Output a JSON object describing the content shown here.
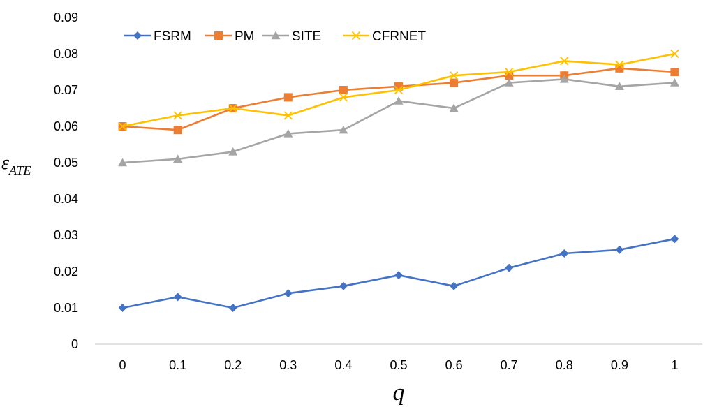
{
  "chart_data": {
    "type": "line",
    "title": "",
    "xlabel": "q",
    "ylabel": {
      "main": "ε",
      "sub": "ATE"
    },
    "x": [
      "0",
      "0.1",
      "0.2",
      "0.3",
      "0.4",
      "0.5",
      "0.6",
      "0.7",
      "0.8",
      "0.9",
      "1"
    ],
    "ylim": [
      0,
      0.09
    ],
    "yticks": [
      "0",
      "0.01",
      "0.02",
      "0.03",
      "0.04",
      "0.05",
      "0.06",
      "0.07",
      "0.08",
      "0.09"
    ],
    "grid": false,
    "legend_position": "top-left",
    "series": [
      {
        "name": "FSRM",
        "color": "#4472C4",
        "marker": "diamond",
        "values": [
          0.01,
          0.013,
          0.01,
          0.014,
          0.016,
          0.019,
          0.016,
          0.021,
          0.025,
          0.026,
          0.029
        ]
      },
      {
        "name": "PM",
        "color": "#ED7D31",
        "marker": "square",
        "values": [
          0.06,
          0.059,
          0.065,
          0.068,
          0.07,
          0.071,
          0.072,
          0.074,
          0.074,
          0.076,
          0.075
        ]
      },
      {
        "name": "SITE",
        "color": "#A5A5A5",
        "marker": "triangle",
        "values": [
          0.05,
          0.051,
          0.053,
          0.058,
          0.059,
          0.067,
          0.065,
          0.072,
          0.073,
          0.071,
          0.072
        ]
      },
      {
        "name": "CFRNET",
        "color": "#FFC000",
        "marker": "x",
        "values": [
          0.06,
          0.063,
          0.065,
          0.063,
          0.068,
          0.07,
          0.074,
          0.075,
          0.078,
          0.077,
          0.08
        ]
      }
    ]
  }
}
